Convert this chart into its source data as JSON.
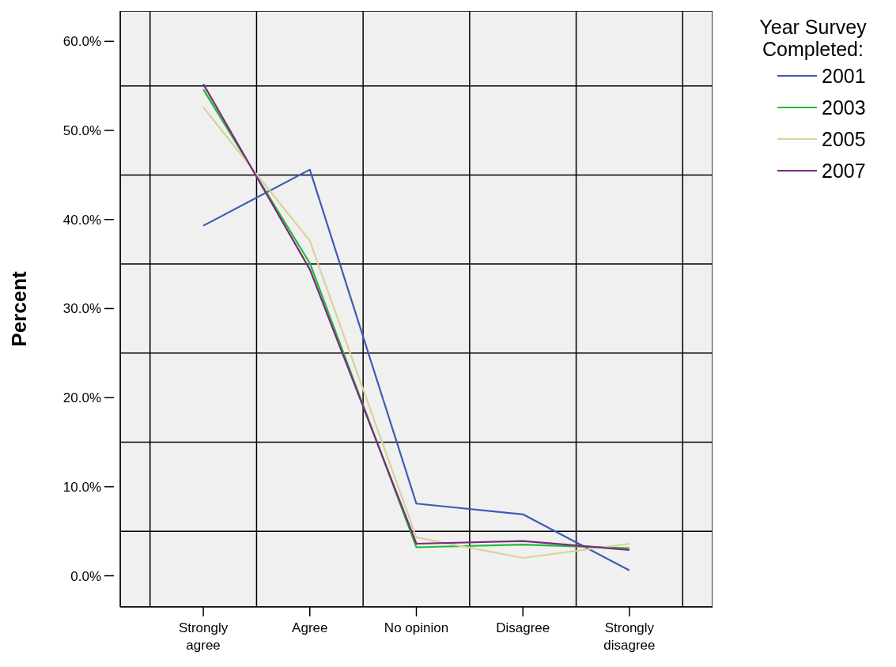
{
  "chart_data": {
    "type": "line",
    "ylabel": "Percent",
    "legend_title": "Year Survey Completed:",
    "legend": "right",
    "grid": true,
    "categories": [
      "Strongly agree",
      "Agree",
      "No opinion",
      "Disagree",
      "Strongly disagree"
    ],
    "ylim": [
      -3.5,
      63.4
    ],
    "yticks": [
      {
        "value": 0,
        "label": "0.0%"
      },
      {
        "value": 5,
        "label": null
      },
      {
        "value": 10,
        "label": "10.0%"
      },
      {
        "value": 15,
        "label": null
      },
      {
        "value": 20,
        "label": "20.0%"
      },
      {
        "value": 25,
        "label": null
      },
      {
        "value": 30,
        "label": "30.0%"
      },
      {
        "value": 35,
        "label": null
      },
      {
        "value": 40,
        "label": "40.0%"
      },
      {
        "value": 45,
        "label": null
      },
      {
        "value": 50,
        "label": "50.0%"
      },
      {
        "value": 55,
        "label": null
      },
      {
        "value": 60,
        "label": "60.0%"
      }
    ],
    "series": [
      {
        "name": "2001",
        "color": "#3c5bb4",
        "values": [
          39.3,
          45.6,
          8.1,
          6.9,
          0.6
        ]
      },
      {
        "name": "2003",
        "color": "#22bb33",
        "values": [
          54.6,
          35.1,
          3.2,
          3.5,
          3.1
        ]
      },
      {
        "name": "2005",
        "color": "#d8d29a",
        "values": [
          52.6,
          37.6,
          4.3,
          2.0,
          3.6
        ]
      },
      {
        "name": "2007",
        "color": "#7a2a7e",
        "values": [
          55.2,
          34.4,
          3.6,
          3.9,
          2.9
        ]
      }
    ]
  }
}
